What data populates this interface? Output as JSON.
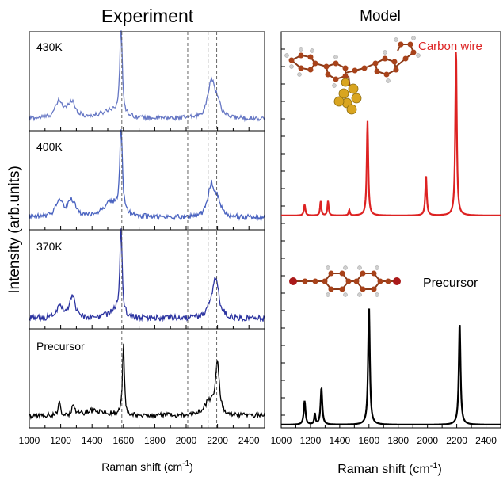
{
  "panels": {
    "left_title": "Experiment",
    "right_title": "Model"
  },
  "ylabel": "Intensity (arb.units)",
  "xlabel_main": "Raman shift (cm",
  "xlabel_sup": "-1",
  "xlabel_close": ")",
  "x_ticks": [
    "1000",
    "1200",
    "1400",
    "1600",
    "1800",
    "2000",
    "2200",
    "2400"
  ],
  "right_labels": {
    "carbon_wire": "Carbon wire",
    "precursor": "Precursor"
  },
  "colors": {
    "430K": "#6677c4",
    "400K": "#4a63c0",
    "370K": "#2b33a0",
    "Precursor": "#000000",
    "carbon_wire": "#dd2222",
    "model_precursor": "#000000",
    "carbon_atom": "#a8421a",
    "hydrogen_atom": "#c8c8c8",
    "gold_atom": "#d9a520",
    "bromine_atom": "#aa1a1a"
  },
  "chart_data": [
    {
      "type": "line",
      "title": "Experiment",
      "xlabel": "Raman shift (cm-1)",
      "ylabel": "Intensity (arb.units)",
      "xlim": [
        1000,
        2500
      ],
      "reference_lines_x": [
        1590,
        2010,
        2140,
        2195
      ],
      "series": [
        {
          "name": "430K",
          "baseline": 0.08,
          "peaks": [
            [
              1190,
              0.18,
              28
            ],
            [
              1270,
              0.18,
              28
            ],
            [
              1520,
              0.09,
              70
            ],
            [
              1585,
              1.0,
              9
            ],
            [
              2160,
              0.42,
              25
            ],
            [
              2200,
              0.15,
              20
            ]
          ]
        },
        {
          "name": "400K",
          "baseline": 0.08,
          "peaks": [
            [
              1190,
              0.18,
              28
            ],
            [
              1270,
              0.18,
              28
            ],
            [
              1520,
              0.16,
              60
            ],
            [
              1585,
              1.0,
              9
            ],
            [
              2160,
              0.35,
              25
            ],
            [
              2200,
              0.15,
              22
            ]
          ]
        },
        {
          "name": "370K",
          "baseline": 0.06,
          "peaks": [
            [
              1195,
              0.14,
              25
            ],
            [
              1275,
              0.26,
              20
            ],
            [
              1545,
              0.1,
              40
            ],
            [
              1585,
              1.0,
              8
            ],
            [
              2190,
              0.4,
              22
            ],
            [
              2160,
              0.12,
              25
            ]
          ]
        },
        {
          "name": "Precursor",
          "baseline": 0.08,
          "peaks": [
            [
              1190,
              0.16,
              8
            ],
            [
              1280,
              0.14,
              8
            ],
            [
              1420,
              0.06,
              80
            ],
            [
              1600,
              0.8,
              7
            ],
            [
              2200,
              0.55,
              14
            ],
            [
              2150,
              0.15,
              40
            ]
          ]
        }
      ]
    },
    {
      "type": "line",
      "title": "Model",
      "xlabel": "Raman shift (cm-1)",
      "xlim": [
        1000,
        2500
      ],
      "series": [
        {
          "name": "Carbon wire",
          "peaks": [
            [
              1160,
              0.06,
              6
            ],
            [
              1270,
              0.08,
              5
            ],
            [
              1320,
              0.08,
              5
            ],
            [
              1465,
              0.03,
              5
            ],
            [
              1590,
              0.52,
              6
            ],
            [
              1990,
              0.22,
              6
            ],
            [
              2195,
              0.92,
              6
            ]
          ]
        },
        {
          "name": "Precursor",
          "peaks": [
            [
              1160,
              0.2,
              7
            ],
            [
              1230,
              0.09,
              5
            ],
            [
              1275,
              0.31,
              7
            ],
            [
              1600,
              1.0,
              7
            ],
            [
              2220,
              0.86,
              7
            ]
          ]
        }
      ]
    }
  ]
}
